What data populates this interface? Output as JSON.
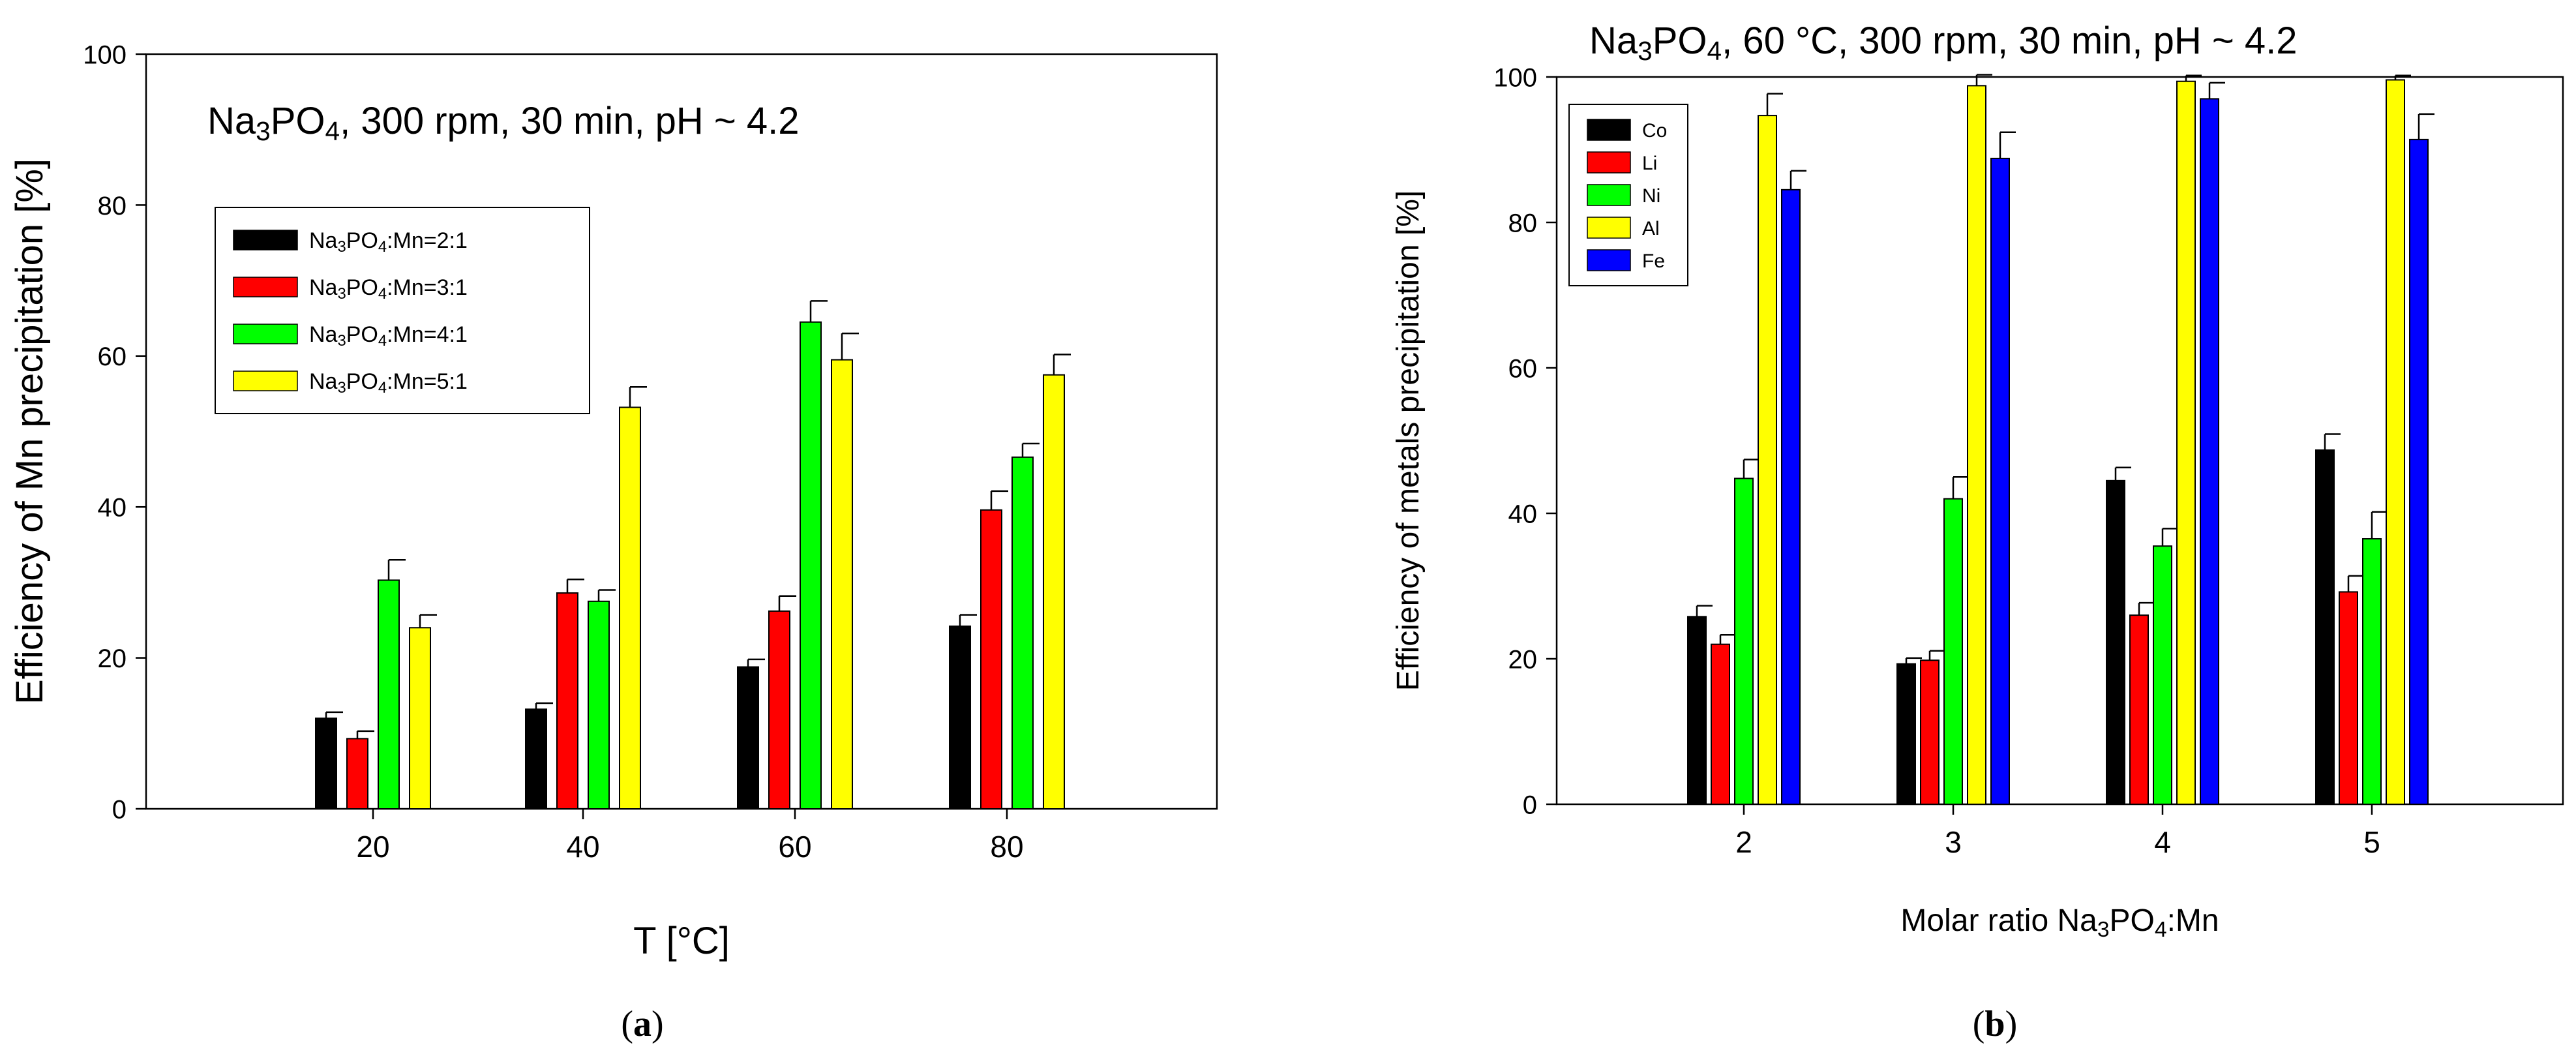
{
  "chart_data": [
    {
      "type": "bar",
      "panel_label": {
        "open": "(",
        "letter": "a",
        "close": ")"
      },
      "title": {
        "base": "Na",
        "sub1": "3",
        "mid": "PO",
        "sub2": "4",
        "rest": ", 300 rpm, 30 min, pH ~ 4.2"
      },
      "xlabel": "T [°C]",
      "ylabel": "Efficiency of Mn precipitation  [%]",
      "categories": [
        "20",
        "40",
        "60",
        "80"
      ],
      "xlim": [
        0,
        100
      ],
      "ylim": [
        0,
        100
      ],
      "yticks": [
        "0",
        "20",
        "40",
        "60",
        "80",
        "100"
      ],
      "grid": false,
      "legend_position": "upper-left",
      "series": [
        {
          "name": {
            "base": "Na",
            "sub1": "3",
            "mid": "PO",
            "sub2": "4",
            "rest": ":Mn=2:1"
          },
          "color": "#000000",
          "values": [
            12.0,
            13.2,
            18.8,
            24.2
          ],
          "errors": [
            0.8,
            0.8,
            1.0,
            1.5
          ]
        },
        {
          "name": {
            "base": "Na",
            "sub1": "3",
            "mid": "PO",
            "sub2": "4",
            "rest": ":Mn=3:1"
          },
          "color": "#ff0000",
          "values": [
            9.3,
            28.6,
            26.2,
            39.6
          ],
          "errors": [
            1.0,
            1.8,
            2.0,
            2.5
          ]
        },
        {
          "name": {
            "base": "Na",
            "sub1": "3",
            "mid": "PO",
            "sub2": "4",
            "rest": ":Mn=4:1"
          },
          "color": "#00ff00",
          "values": [
            30.3,
            27.5,
            64.5,
            46.6
          ],
          "errors": [
            2.7,
            1.5,
            2.8,
            1.8
          ]
        },
        {
          "name": {
            "base": "Na",
            "sub1": "3",
            "mid": "PO",
            "sub2": "4",
            "rest": ":Mn=5:1"
          },
          "color": "#ffff00",
          "values": [
            24.0,
            53.2,
            59.5,
            57.5
          ],
          "errors": [
            1.7,
            2.7,
            3.5,
            2.7
          ]
        }
      ]
    },
    {
      "type": "bar",
      "panel_label": {
        "open": "(",
        "letter": "b",
        "close": ")"
      },
      "title": {
        "base": "Na",
        "sub1": "3",
        "mid": "PO",
        "sub2": "4",
        "rest": ", 60 °C, 300 rpm, 30 min, pH ~ 4.2"
      },
      "xlabel": {
        "base": "Molar ratio Na",
        "sub1": "3",
        "mid": "PO",
        "sub2": "4",
        "rest": ":Mn"
      },
      "ylabel": "Efficiency of metals precipitation [%]",
      "categories": [
        "2",
        "3",
        "4",
        "5"
      ],
      "xlim": [
        0,
        7
      ],
      "ylim": [
        0,
        100
      ],
      "yticks": [
        "0",
        "20",
        "40",
        "60",
        "80",
        "100"
      ],
      "grid": false,
      "legend_position": "upper-left",
      "series": [
        {
          "name": "Co",
          "color": "#000000",
          "values": [
            25.8,
            19.3,
            44.5,
            48.7
          ],
          "errors": [
            1.5,
            0.8,
            1.8,
            2.2
          ]
        },
        {
          "name": "Li",
          "color": "#ff0000",
          "values": [
            22.0,
            19.8,
            26.0,
            29.2
          ],
          "errors": [
            1.3,
            1.3,
            1.7,
            2.2
          ]
        },
        {
          "name": "Ni",
          "color": "#00ff00",
          "values": [
            44.8,
            42.0,
            35.5,
            36.5
          ],
          "errors": [
            2.6,
            3.0,
            2.4,
            3.7
          ]
        },
        {
          "name": "Al",
          "color": "#ffff00",
          "values": [
            94.7,
            98.8,
            99.4,
            99.6
          ],
          "errors": [
            3.0,
            1.5,
            0.8,
            0.6
          ]
        },
        {
          "name": "Fe",
          "color": "#0000ff",
          "values": [
            84.5,
            88.8,
            97.0,
            91.4
          ],
          "errors": [
            2.6,
            3.6,
            2.2,
            3.5
          ]
        }
      ]
    }
  ]
}
